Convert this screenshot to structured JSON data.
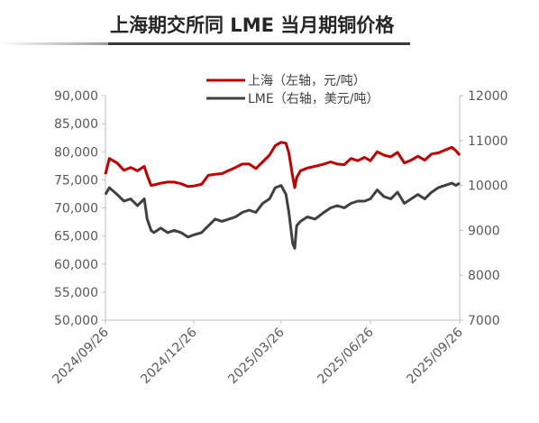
{
  "header": {
    "title": "上海期交所同 LME 当月期铜价格"
  },
  "chart_data": {
    "type": "line",
    "title": "上海期交所同 LME 当月期铜价格",
    "x_ticks": [
      "2024/09/26",
      "2024/12/26",
      "2025/03/26",
      "2025/06/26",
      "2025/09/26"
    ],
    "x_range": [
      "2024/09/26",
      "2025/09/26"
    ],
    "y_left": {
      "label": "",
      "range": [
        50000,
        90000
      ],
      "ticks": [
        "50,000",
        "55,000",
        "60,000",
        "65,000",
        "70,000",
        "75,000",
        "80,000",
        "85,000",
        "90,000"
      ]
    },
    "y_right": {
      "label": "",
      "range": [
        7000,
        12000
      ],
      "ticks": [
        "7000",
        "8000",
        "9000",
        "10000",
        "11000",
        "12000"
      ]
    },
    "legend_position": "top",
    "grid": false,
    "colors": {
      "shanghai": "#c00000",
      "lme": "#404040"
    },
    "series": [
      {
        "name": "上海（左轴，元/吨）",
        "axis": "left",
        "points": [
          [
            "2024/09/26",
            76000
          ],
          [
            "2024/09/30",
            78800
          ],
          [
            "2024/10/08",
            78000
          ],
          [
            "2024/10/15",
            76700
          ],
          [
            "2024/10/22",
            77200
          ],
          [
            "2024/10/29",
            76600
          ],
          [
            "2024/11/05",
            77400
          ],
          [
            "2024/11/08",
            75800
          ],
          [
            "2024/11/12",
            74000
          ],
          [
            "2024/11/15",
            74100
          ],
          [
            "2024/11/22",
            74400
          ],
          [
            "2024/11/29",
            74600
          ],
          [
            "2024/12/06",
            74600
          ],
          [
            "2024/12/13",
            74300
          ],
          [
            "2024/12/20",
            73800
          ],
          [
            "2024/12/26",
            73900
          ],
          [
            "2025/01/03",
            74200
          ],
          [
            "2025/01/10",
            75800
          ],
          [
            "2025/01/17",
            76000
          ],
          [
            "2025/01/24",
            76100
          ],
          [
            "2025/02/07",
            77200
          ],
          [
            "2025/02/14",
            77800
          ],
          [
            "2025/02/21",
            77800
          ],
          [
            "2025/02/28",
            77000
          ],
          [
            "2025/03/07",
            78200
          ],
          [
            "2025/03/14",
            79400
          ],
          [
            "2025/03/20",
            81100
          ],
          [
            "2025/03/26",
            81700
          ],
          [
            "2025/03/31",
            81500
          ],
          [
            "2025/04/03",
            79800
          ],
          [
            "2025/04/07",
            75500
          ],
          [
            "2025/04/09",
            73600
          ],
          [
            "2025/04/11",
            75400
          ],
          [
            "2025/04/15",
            76600
          ],
          [
            "2025/04/22",
            77100
          ],
          [
            "2025/04/30",
            77400
          ],
          [
            "2025/05/09",
            77800
          ],
          [
            "2025/05/16",
            78200
          ],
          [
            "2025/05/23",
            77800
          ],
          [
            "2025/05/30",
            77700
          ],
          [
            "2025/06/06",
            78800
          ],
          [
            "2025/06/13",
            78400
          ],
          [
            "2025/06/20",
            79000
          ],
          [
            "2025/06/26",
            78400
          ],
          [
            "2025/07/03",
            80000
          ],
          [
            "2025/07/10",
            79400
          ],
          [
            "2025/07/17",
            79100
          ],
          [
            "2025/07/24",
            79900
          ],
          [
            "2025/07/31",
            78000
          ],
          [
            "2025/08/07",
            78500
          ],
          [
            "2025/08/14",
            79200
          ],
          [
            "2025/08/21",
            78500
          ],
          [
            "2025/08/28",
            79600
          ],
          [
            "2025/09/04",
            79800
          ],
          [
            "2025/09/11",
            80300
          ],
          [
            "2025/09/18",
            80800
          ],
          [
            "2025/09/22",
            80200
          ],
          [
            "2025/09/26",
            79400
          ]
        ]
      },
      {
        "name": "LME（右轴，美元/吨）",
        "axis": "right",
        "points": [
          [
            "2024/09/26",
            9800
          ],
          [
            "2024/09/30",
            9950
          ],
          [
            "2024/10/08",
            9800
          ],
          [
            "2024/10/15",
            9650
          ],
          [
            "2024/10/22",
            9700
          ],
          [
            "2024/10/29",
            9550
          ],
          [
            "2024/11/05",
            9700
          ],
          [
            "2024/11/08",
            9250
          ],
          [
            "2024/11/12",
            9000
          ],
          [
            "2024/11/15",
            8950
          ],
          [
            "2024/11/22",
            9050
          ],
          [
            "2024/11/29",
            8950
          ],
          [
            "2024/12/06",
            9000
          ],
          [
            "2024/12/13",
            8950
          ],
          [
            "2024/12/20",
            8850
          ],
          [
            "2024/12/26",
            8900
          ],
          [
            "2025/01/03",
            8950
          ],
          [
            "2025/01/10",
            9100
          ],
          [
            "2025/01/17",
            9250
          ],
          [
            "2025/01/24",
            9200
          ],
          [
            "2025/02/07",
            9300
          ],
          [
            "2025/02/14",
            9400
          ],
          [
            "2025/02/21",
            9450
          ],
          [
            "2025/02/28",
            9400
          ],
          [
            "2025/03/07",
            9600
          ],
          [
            "2025/03/14",
            9700
          ],
          [
            "2025/03/20",
            9950
          ],
          [
            "2025/03/26",
            10000
          ],
          [
            "2025/03/31",
            9800
          ],
          [
            "2025/04/03",
            9400
          ],
          [
            "2025/04/07",
            8700
          ],
          [
            "2025/04/09",
            8600
          ],
          [
            "2025/04/11",
            9100
          ],
          [
            "2025/04/15",
            9200
          ],
          [
            "2025/04/22",
            9300
          ],
          [
            "2025/04/30",
            9250
          ],
          [
            "2025/05/09",
            9400
          ],
          [
            "2025/05/16",
            9500
          ],
          [
            "2025/05/23",
            9550
          ],
          [
            "2025/05/30",
            9500
          ],
          [
            "2025/06/06",
            9600
          ],
          [
            "2025/06/13",
            9650
          ],
          [
            "2025/06/20",
            9650
          ],
          [
            "2025/06/26",
            9700
          ],
          [
            "2025/07/03",
            9900
          ],
          [
            "2025/07/10",
            9750
          ],
          [
            "2025/07/17",
            9700
          ],
          [
            "2025/07/24",
            9850
          ],
          [
            "2025/07/31",
            9600
          ],
          [
            "2025/08/07",
            9700
          ],
          [
            "2025/08/14",
            9800
          ],
          [
            "2025/08/21",
            9700
          ],
          [
            "2025/08/28",
            9850
          ],
          [
            "2025/09/04",
            9950
          ],
          [
            "2025/09/11",
            10000
          ],
          [
            "2025/09/18",
            10050
          ],
          [
            "2025/09/22",
            10000
          ],
          [
            "2025/09/26",
            10050
          ]
        ]
      }
    ]
  }
}
